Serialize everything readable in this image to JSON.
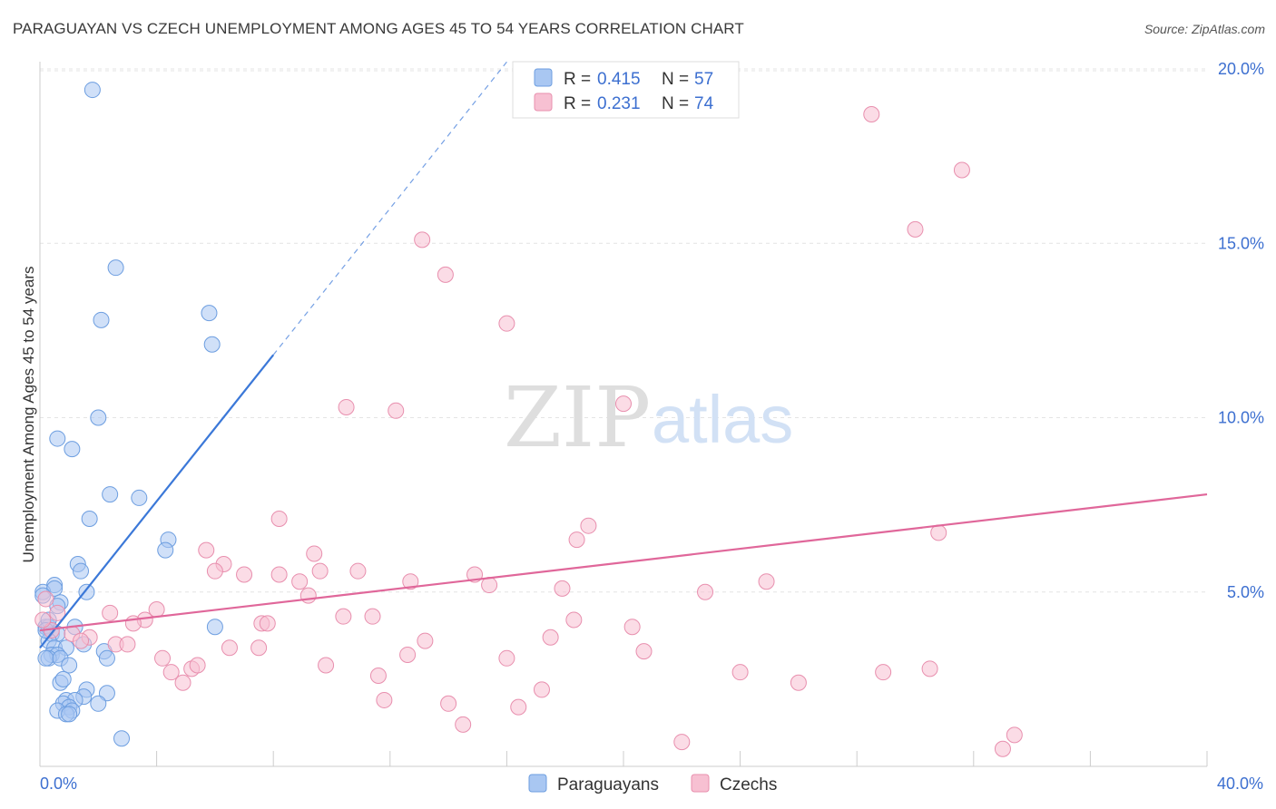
{
  "title": "PARAGUAYAN VS CZECH UNEMPLOYMENT AMONG AGES 45 TO 54 YEARS CORRELATION CHART",
  "source": "Source: ZipAtlas.com",
  "watermark": {
    "zip": "ZIP",
    "atlas": "atlas"
  },
  "stats": [
    {
      "r_label": "R =",
      "r_value": "0.415",
      "n_label": "N =",
      "n_value": "57",
      "color": "#a9c7f2",
      "stroke": "#6d9ee0"
    },
    {
      "r_label": "R =",
      "r_value": "0.231",
      "n_label": "N =",
      "n_value": "74",
      "color": "#f7c0d2",
      "stroke": "#e88fae"
    }
  ],
  "legend": [
    {
      "label": "Paraguayans",
      "color": "#a9c7f2",
      "stroke": "#6d9ee0"
    },
    {
      "label": "Czechs",
      "color": "#f7c0d2",
      "stroke": "#e88fae"
    }
  ],
  "chart_data": {
    "type": "scatter",
    "ylabel": "Unemployment Among Ages 45 to 54 years",
    "xlabel": "",
    "xlim": [
      0,
      40
    ],
    "ylim": [
      0,
      20
    ],
    "x_tick_labels": [
      "0.0%",
      "40.0%"
    ],
    "y_ticks": [
      {
        "value": 5,
        "label": "5.0%"
      },
      {
        "value": 10,
        "label": "10.0%"
      },
      {
        "value": 15,
        "label": "15.0%"
      },
      {
        "value": 20,
        "label": "20.0%"
      }
    ],
    "series": [
      {
        "name": "Paraguayans",
        "color": "#3b78d8",
        "fill": "#a9c7f2",
        "stroke": "#6d9ee0",
        "trend": {
          "x0": 0,
          "y0": 3.4,
          "x1": 8.0,
          "y1": 11.8,
          "dash_to_x": 16.0,
          "dash_to_y": 20.2
        },
        "points": [
          [
            1.8,
            19.4
          ],
          [
            2.6,
            14.3
          ],
          [
            2.1,
            12.8
          ],
          [
            5.8,
            13.0
          ],
          [
            5.9,
            12.1
          ],
          [
            2.0,
            10.0
          ],
          [
            0.6,
            9.4
          ],
          [
            1.1,
            9.1
          ],
          [
            2.4,
            7.8
          ],
          [
            3.4,
            7.7
          ],
          [
            1.7,
            7.1
          ],
          [
            4.4,
            6.5
          ],
          [
            4.3,
            6.2
          ],
          [
            1.3,
            5.8
          ],
          [
            1.4,
            5.6
          ],
          [
            0.5,
            5.2
          ],
          [
            0.1,
            5.0
          ],
          [
            0.5,
            5.1
          ],
          [
            1.6,
            5.0
          ],
          [
            0.7,
            4.7
          ],
          [
            0.6,
            4.6
          ],
          [
            0.1,
            4.9
          ],
          [
            0.2,
            4.0
          ],
          [
            0.3,
            4.0
          ],
          [
            0.4,
            3.8
          ],
          [
            0.6,
            3.8
          ],
          [
            1.2,
            4.0
          ],
          [
            0.3,
            3.6
          ],
          [
            0.5,
            3.4
          ],
          [
            0.9,
            3.4
          ],
          [
            0.4,
            3.2
          ],
          [
            0.6,
            3.2
          ],
          [
            0.3,
            3.1
          ],
          [
            0.2,
            3.1
          ],
          [
            0.7,
            3.1
          ],
          [
            2.2,
            3.3
          ],
          [
            2.3,
            3.1
          ],
          [
            1.0,
            2.9
          ],
          [
            0.7,
            2.4
          ],
          [
            0.8,
            2.5
          ],
          [
            1.6,
            2.2
          ],
          [
            1.5,
            2.0
          ],
          [
            2.3,
            2.1
          ],
          [
            0.9,
            1.9
          ],
          [
            1.2,
            1.9
          ],
          [
            0.8,
            1.8
          ],
          [
            1.0,
            1.7
          ],
          [
            0.6,
            1.6
          ],
          [
            1.1,
            1.6
          ],
          [
            2.0,
            1.8
          ],
          [
            0.9,
            1.5
          ],
          [
            1.0,
            1.5
          ],
          [
            2.8,
            0.8
          ],
          [
            6.0,
            4.0
          ],
          [
            0.3,
            4.2
          ],
          [
            1.5,
            3.5
          ],
          [
            0.2,
            3.9
          ]
        ]
      },
      {
        "name": "Czechs",
        "color": "#e0679a",
        "fill": "#f7c0d2",
        "stroke": "#e88fae",
        "trend": {
          "x0": 0,
          "y0": 3.9,
          "x1": 40,
          "y1": 7.8
        },
        "points": [
          [
            28.5,
            18.7
          ],
          [
            31.6,
            17.1
          ],
          [
            30.0,
            15.4
          ],
          [
            13.1,
            15.1
          ],
          [
            13.9,
            14.1
          ],
          [
            16.0,
            12.7
          ],
          [
            10.5,
            10.3
          ],
          [
            12.2,
            10.2
          ],
          [
            20.0,
            10.4
          ],
          [
            8.2,
            7.1
          ],
          [
            18.8,
            6.9
          ],
          [
            18.4,
            6.5
          ],
          [
            30.8,
            6.7
          ],
          [
            5.7,
            6.2
          ],
          [
            9.4,
            6.1
          ],
          [
            6.3,
            5.8
          ],
          [
            6.0,
            5.6
          ],
          [
            7.0,
            5.5
          ],
          [
            8.2,
            5.5
          ],
          [
            9.6,
            5.6
          ],
          [
            10.9,
            5.6
          ],
          [
            12.7,
            5.3
          ],
          [
            14.9,
            5.5
          ],
          [
            15.4,
            5.2
          ],
          [
            24.9,
            5.3
          ],
          [
            17.9,
            5.1
          ],
          [
            22.8,
            5.0
          ],
          [
            9.2,
            4.9
          ],
          [
            8.9,
            5.3
          ],
          [
            4.0,
            4.5
          ],
          [
            2.4,
            4.4
          ],
          [
            3.6,
            4.2
          ],
          [
            3.2,
            4.1
          ],
          [
            7.6,
            4.1
          ],
          [
            7.8,
            4.1
          ],
          [
            10.4,
            4.3
          ],
          [
            11.4,
            4.3
          ],
          [
            18.3,
            4.2
          ],
          [
            20.3,
            4.0
          ],
          [
            1.1,
            3.8
          ],
          [
            1.7,
            3.7
          ],
          [
            2.6,
            3.5
          ],
          [
            3.0,
            3.5
          ],
          [
            6.5,
            3.4
          ],
          [
            7.5,
            3.4
          ],
          [
            13.2,
            3.6
          ],
          [
            17.5,
            3.7
          ],
          [
            12.6,
            3.2
          ],
          [
            20.7,
            3.3
          ],
          [
            16.0,
            3.1
          ],
          [
            4.2,
            3.1
          ],
          [
            5.2,
            2.8
          ],
          [
            5.4,
            2.9
          ],
          [
            4.5,
            2.7
          ],
          [
            9.8,
            2.9
          ],
          [
            11.6,
            2.6
          ],
          [
            24.0,
            2.7
          ],
          [
            28.9,
            2.7
          ],
          [
            30.5,
            2.8
          ],
          [
            26.0,
            2.4
          ],
          [
            4.9,
            2.4
          ],
          [
            17.2,
            2.2
          ],
          [
            11.8,
            1.9
          ],
          [
            14.0,
            1.8
          ],
          [
            16.4,
            1.7
          ],
          [
            14.5,
            1.2
          ],
          [
            22.0,
            0.7
          ],
          [
            33.4,
            0.9
          ],
          [
            33.0,
            0.5
          ],
          [
            0.6,
            4.4
          ],
          [
            0.2,
            4.8
          ],
          [
            0.4,
            3.9
          ],
          [
            0.1,
            4.2
          ],
          [
            1.4,
            3.6
          ]
        ]
      }
    ]
  }
}
